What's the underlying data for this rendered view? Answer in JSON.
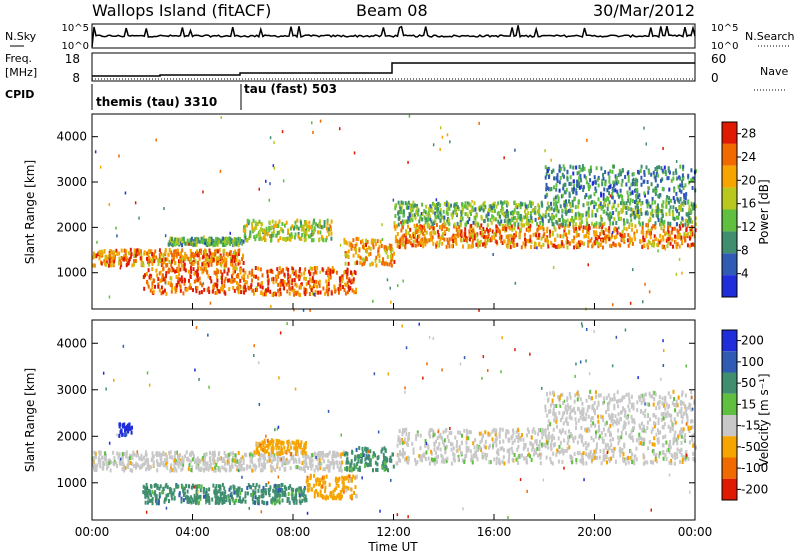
{
  "header": {
    "station": "Wallops Island (fitACF)",
    "beam": "Beam 08",
    "date": "30/Mar/2012"
  },
  "nsky_panel": {
    "left_label": "N.Sky",
    "right_label": "N.Search",
    "ticks_left": [
      "10^5",
      "10^0"
    ],
    "ticks_right": [
      "10^5",
      "10^0"
    ]
  },
  "freq_panel": {
    "left_label_line1": "Freq.",
    "left_label_line2": "[MHz]",
    "right_label": "Nave",
    "ticks_left": [
      "18",
      "8"
    ],
    "ticks_right": [
      "60",
      "0"
    ]
  },
  "cpid_panel": {
    "label": "CPID",
    "programs": [
      {
        "name": "themis (tau) 3310",
        "start": "00:00"
      },
      {
        "name": "tau (fast) 503",
        "start": "06:00"
      }
    ]
  },
  "chart_data": [
    {
      "type": "heatmap",
      "title": "",
      "xlabel": "",
      "ylabel": "Slant Range [km]",
      "colorbar_label": "Power [dB]",
      "xlim": [
        "00:00",
        "24:00"
      ],
      "ylim": [
        200,
        4500
      ],
      "y_ticks": [
        1000,
        2000,
        3000,
        4000
      ],
      "colorbar_ticks": [
        4,
        8,
        12,
        16,
        20,
        24,
        28
      ],
      "colorbar_range": [
        0,
        30
      ],
      "colors": [
        "#1f2ddb",
        "#2f5bb3",
        "#3f8f6f",
        "#5fbf3f",
        "#b8c81e",
        "#f5a400",
        "#f06a00",
        "#e01a00"
      ],
      "bands": [
        {
          "start_h": 0.0,
          "end_h": 6.0,
          "range_km": [
            1200,
            1550
          ],
          "power_db": 24
        },
        {
          "start_h": 3.0,
          "end_h": 6.0,
          "range_km": [
            1650,
            1800
          ],
          "power_db": 12
        },
        {
          "start_h": 2.0,
          "end_h": 10.5,
          "range_km": [
            550,
            1150
          ],
          "power_db": 26
        },
        {
          "start_h": 6.0,
          "end_h": 9.5,
          "range_km": [
            1750,
            2200
          ],
          "power_db": 16
        },
        {
          "start_h": 10.0,
          "end_h": 12.0,
          "range_km": [
            1200,
            1800
          ],
          "power_db": 22
        },
        {
          "start_h": 12.0,
          "end_h": 24.0,
          "range_km": [
            1600,
            2100
          ],
          "power_db": 24
        },
        {
          "start_h": 12.0,
          "end_h": 24.0,
          "range_km": [
            2100,
            2600
          ],
          "power_db": 12
        },
        {
          "start_h": 18.0,
          "end_h": 24.0,
          "range_km": [
            2600,
            3400
          ],
          "power_db": 8
        }
      ]
    },
    {
      "type": "heatmap",
      "title": "",
      "xlabel": "Time UT",
      "ylabel": "Slant Range [km]",
      "colorbar_label": "Velocity [m s⁻¹]",
      "xlim": [
        "00:00",
        "24:00"
      ],
      "ylim": [
        200,
        4500
      ],
      "x_ticks": [
        "00:00",
        "04:00",
        "08:00",
        "12:00",
        "16:00",
        "20:00",
        "00:00"
      ],
      "y_ticks": [
        1000,
        2000,
        3000,
        4000
      ],
      "colorbar_ticks": [
        "200",
        "100",
        "50",
        "15",
        "-15",
        "-50",
        "-100",
        "-200"
      ],
      "colors": [
        "#1f2ddb",
        "#2f5bb3",
        "#3f8f6f",
        "#5fbf3f",
        "#c8c8c8",
        "#f5a400",
        "#f06a00",
        "#e01a00"
      ],
      "bands": [
        {
          "start_h": 0.0,
          "end_h": 10.0,
          "range_km": [
            1300,
            1700
          ],
          "velocity": 0
        },
        {
          "start_h": 1.0,
          "end_h": 1.6,
          "range_km": [
            2050,
            2300
          ],
          "velocity": 200
        },
        {
          "start_h": 2.0,
          "end_h": 8.5,
          "range_km": [
            600,
            1000
          ],
          "velocity": 50
        },
        {
          "start_h": 8.5,
          "end_h": 10.5,
          "range_km": [
            700,
            1200
          ],
          "velocity": -50
        },
        {
          "start_h": 6.5,
          "end_h": 8.5,
          "range_km": [
            1650,
            1950
          ],
          "velocity": -50
        },
        {
          "start_h": 10.0,
          "end_h": 12.0,
          "range_km": [
            1300,
            1800
          ],
          "velocity": 50
        },
        {
          "start_h": 12.0,
          "end_h": 24.0,
          "range_km": [
            1450,
            2200
          ],
          "velocity": 0
        },
        {
          "start_h": 18.0,
          "end_h": 24.0,
          "range_km": [
            2200,
            3000
          ],
          "velocity": 0
        }
      ]
    }
  ]
}
